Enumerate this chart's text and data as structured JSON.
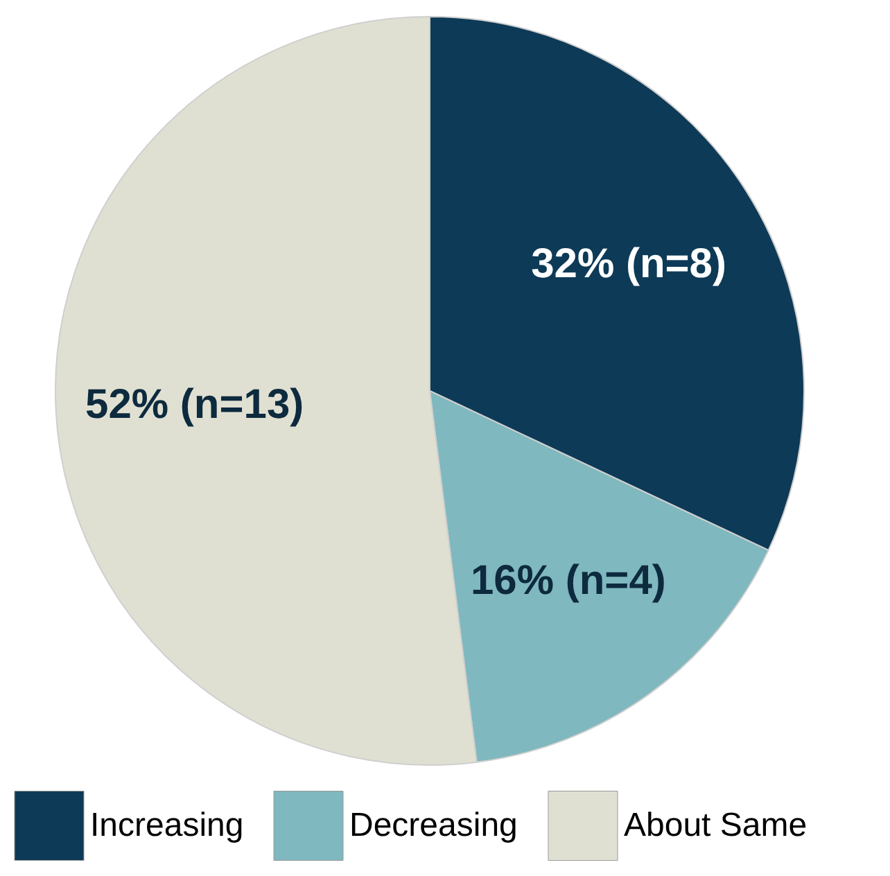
{
  "chart_data": {
    "type": "pie",
    "categories": [
      "Increasing",
      "Decreasing",
      "About Same"
    ],
    "values": [
      32,
      16,
      52
    ],
    "colors": [
      "#0d3a57",
      "#7fb8be",
      "#e0e0d2"
    ],
    "value_labels": [
      "32% (n=8)",
      "16% (n=4)",
      "52% (n=13)"
    ],
    "legend": "bottom"
  }
}
